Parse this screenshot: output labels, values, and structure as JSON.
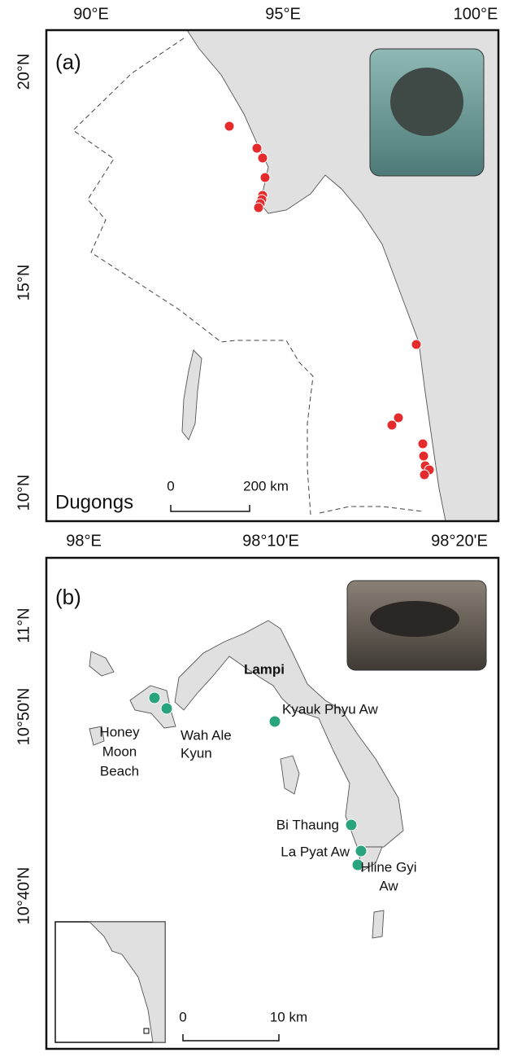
{
  "panels": [
    {
      "label": "(a)",
      "x_ticks": [
        "90°E",
        "95°E",
        "100°E"
      ],
      "y_ticks": [
        "20°N",
        "15°N",
        "10°N"
      ],
      "legend": "Dugongs",
      "scale": [
        "0",
        "200 km"
      ]
    },
    {
      "label": "(b)",
      "x_ticks": [
        "98°E",
        "98°10'E",
        "98°20'E"
      ],
      "y_ticks": [
        "11°N",
        "10°50'N",
        "10°40'N"
      ],
      "places": [
        {
          "name": [
            "Lampi"
          ]
        },
        {
          "name": [
            "Kyauk Phyu Aw"
          ]
        },
        {
          "name": [
            "Honey",
            "Moon",
            "Beach"
          ]
        },
        {
          "name": [
            "Wah Ale",
            "Kyun"
          ]
        },
        {
          "name": [
            "Bi Thaung"
          ]
        },
        {
          "name": [
            "La Pyat Aw"
          ]
        },
        {
          "name": [
            "Hline Gyi",
            "Aw"
          ]
        }
      ],
      "scale": [
        "0",
        "10 km"
      ]
    }
  ]
}
